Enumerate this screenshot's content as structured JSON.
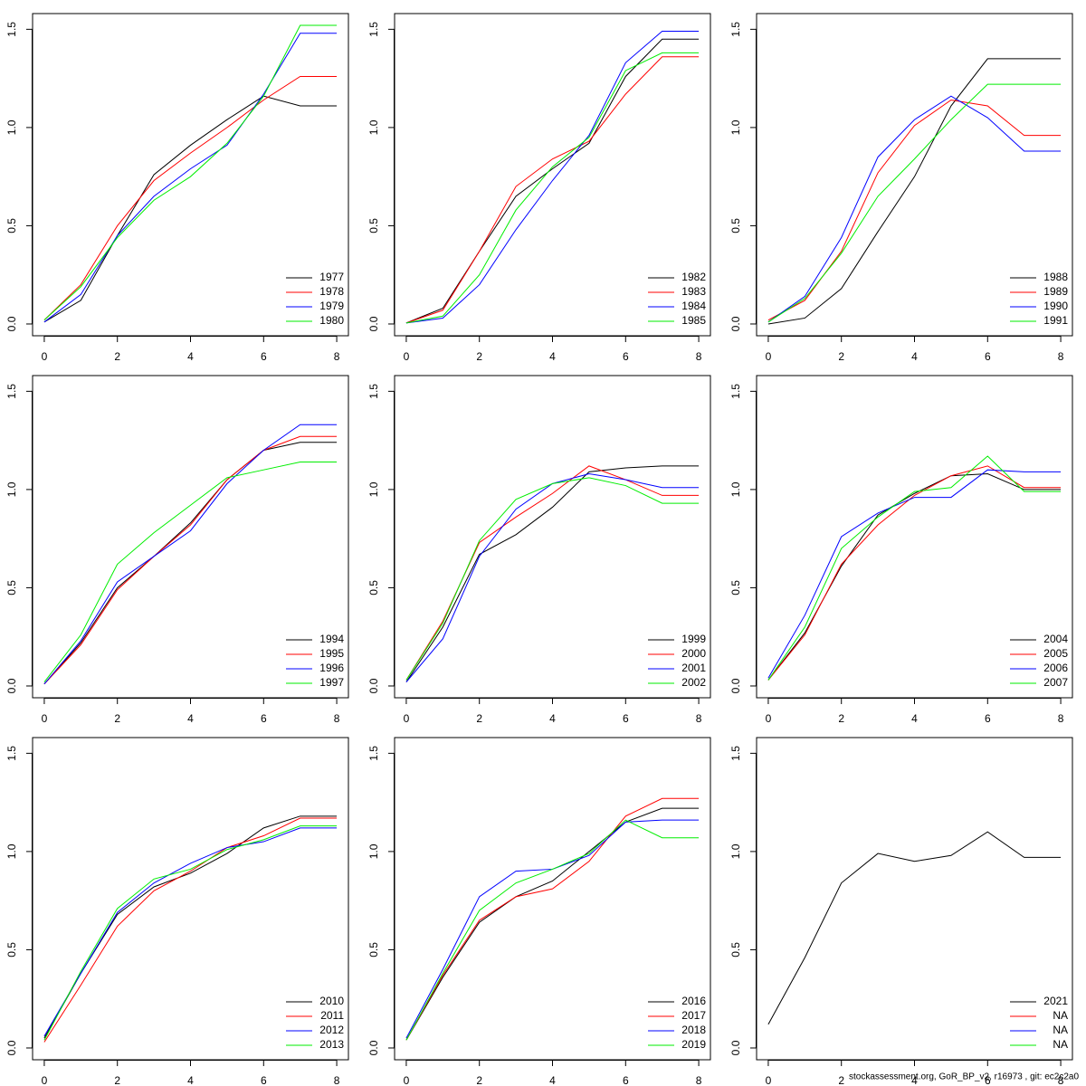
{
  "chart_data": [
    {
      "type": "line",
      "x": [
        0,
        1,
        2,
        3,
        4,
        5,
        6,
        7,
        8
      ],
      "xlim": [
        -0.32,
        8.32
      ],
      "ylim": [
        -0.06,
        1.58
      ],
      "xticks": [
        0,
        2,
        4,
        6,
        8
      ],
      "yticks": [
        {
          "value": 0,
          "label": "0.0"
        },
        {
          "value": 0.5,
          "label": "0.5"
        },
        {
          "value": 1,
          "label": "1.0"
        },
        {
          "value": 1.5,
          "label": "1.5"
        }
      ],
      "legend": "bottomright",
      "series": [
        {
          "name": "1977",
          "color": "#000000",
          "values": [
            0.01,
            0.12,
            0.45,
            0.76,
            0.91,
            1.04,
            1.16,
            1.11,
            1.11
          ]
        },
        {
          "name": "1978",
          "color": "#ff0000",
          "values": [
            0.02,
            0.2,
            0.5,
            0.73,
            0.87,
            1.0,
            1.14,
            1.26,
            1.26
          ]
        },
        {
          "name": "1979",
          "color": "#0000ff",
          "values": [
            0.01,
            0.15,
            0.45,
            0.65,
            0.79,
            0.91,
            1.17,
            1.48,
            1.48
          ]
        },
        {
          "name": "1980",
          "color": "#00ee00",
          "values": [
            0.02,
            0.19,
            0.44,
            0.63,
            0.75,
            0.92,
            1.16,
            1.52,
            1.52
          ]
        }
      ]
    },
    {
      "type": "line",
      "x": [
        0,
        1,
        2,
        3,
        4,
        5,
        6,
        7,
        8
      ],
      "xlim": [
        -0.32,
        8.32
      ],
      "ylim": [
        -0.06,
        1.58
      ],
      "xticks": [
        0,
        2,
        4,
        6,
        8
      ],
      "yticks": [
        {
          "value": 0,
          "label": "0.0"
        },
        {
          "value": 0.5,
          "label": "0.5"
        },
        {
          "value": 1,
          "label": "1.0"
        },
        {
          "value": 1.5,
          "label": "1.5"
        }
      ],
      "legend": "bottomright",
      "series": [
        {
          "name": "1982",
          "color": "#000000",
          "values": [
            0.005,
            0.08,
            0.37,
            0.65,
            0.79,
            0.92,
            1.26,
            1.45,
            1.45
          ]
        },
        {
          "name": "1983",
          "color": "#ff0000",
          "values": [
            0.005,
            0.07,
            0.37,
            0.7,
            0.84,
            0.93,
            1.17,
            1.36,
            1.36
          ]
        },
        {
          "name": "1984",
          "color": "#0000ff",
          "values": [
            0.005,
            0.03,
            0.2,
            0.48,
            0.73,
            0.96,
            1.33,
            1.49,
            1.49
          ]
        },
        {
          "name": "1985",
          "color": "#00ee00",
          "values": [
            0.005,
            0.04,
            0.25,
            0.58,
            0.8,
            0.95,
            1.29,
            1.38,
            1.38
          ]
        }
      ]
    },
    {
      "type": "line",
      "x": [
        0,
        1,
        2,
        3,
        4,
        5,
        6,
        7,
        8
      ],
      "xlim": [
        -0.32,
        8.32
      ],
      "ylim": [
        -0.06,
        1.58
      ],
      "xticks": [
        0,
        2,
        4,
        6,
        8
      ],
      "yticks": [
        {
          "value": 0,
          "label": "0.0"
        },
        {
          "value": 0.5,
          "label": "0.5"
        },
        {
          "value": 1,
          "label": "1.0"
        },
        {
          "value": 1.5,
          "label": "1.5"
        }
      ],
      "legend": "bottomright",
      "series": [
        {
          "name": "1988",
          "color": "#000000",
          "values": [
            0.0,
            0.03,
            0.18,
            0.47,
            0.75,
            1.11,
            1.35,
            1.35,
            1.35
          ]
        },
        {
          "name": "1989",
          "color": "#ff0000",
          "values": [
            0.02,
            0.12,
            0.37,
            0.77,
            1.01,
            1.14,
            1.11,
            0.96,
            0.96
          ]
        },
        {
          "name": "1990",
          "color": "#0000ff",
          "values": [
            0.01,
            0.14,
            0.44,
            0.85,
            1.04,
            1.16,
            1.05,
            0.88,
            0.88
          ]
        },
        {
          "name": "1991",
          "color": "#00ee00",
          "values": [
            0.01,
            0.13,
            0.36,
            0.65,
            0.84,
            1.04,
            1.22,
            1.22,
            1.22
          ]
        }
      ]
    },
    {
      "type": "line",
      "x": [
        0,
        1,
        2,
        3,
        4,
        5,
        6,
        7,
        8
      ],
      "xlim": [
        -0.32,
        8.32
      ],
      "ylim": [
        -0.06,
        1.58
      ],
      "xticks": [
        0,
        2,
        4,
        6,
        8
      ],
      "yticks": [
        {
          "value": 0,
          "label": "0.0"
        },
        {
          "value": 0.5,
          "label": "0.5"
        },
        {
          "value": 1,
          "label": "1.0"
        },
        {
          "value": 1.5,
          "label": "1.5"
        }
      ],
      "legend": "bottomright",
      "series": [
        {
          "name": "1994",
          "color": "#000000",
          "values": [
            0.01,
            0.22,
            0.5,
            0.66,
            0.83,
            1.05,
            1.2,
            1.24,
            1.24
          ]
        },
        {
          "name": "1995",
          "color": "#ff0000",
          "values": [
            0.01,
            0.21,
            0.49,
            0.66,
            0.82,
            1.05,
            1.2,
            1.27,
            1.27
          ]
        },
        {
          "name": "1996",
          "color": "#0000ff",
          "values": [
            0.01,
            0.23,
            0.53,
            0.66,
            0.79,
            1.03,
            1.2,
            1.33,
            1.33
          ]
        },
        {
          "name": "1997",
          "color": "#00ee00",
          "values": [
            0.02,
            0.26,
            0.62,
            0.78,
            0.92,
            1.06,
            1.1,
            1.14,
            1.14
          ]
        }
      ]
    },
    {
      "type": "line",
      "x": [
        0,
        1,
        2,
        3,
        4,
        5,
        6,
        7,
        8
      ],
      "xlim": [
        -0.32,
        8.32
      ],
      "ylim": [
        -0.06,
        1.58
      ],
      "xticks": [
        0,
        2,
        4,
        6,
        8
      ],
      "yticks": [
        {
          "value": 0,
          "label": "0.0"
        },
        {
          "value": 0.5,
          "label": "0.5"
        },
        {
          "value": 1,
          "label": "1.0"
        },
        {
          "value": 1.5,
          "label": "1.5"
        }
      ],
      "legend": "bottomright",
      "series": [
        {
          "name": "1999",
          "color": "#000000",
          "values": [
            0.02,
            0.3,
            0.67,
            0.77,
            0.91,
            1.09,
            1.11,
            1.12,
            1.12
          ]
        },
        {
          "name": "2000",
          "color": "#ff0000",
          "values": [
            0.03,
            0.33,
            0.73,
            0.86,
            0.98,
            1.12,
            1.05,
            0.97,
            0.97
          ]
        },
        {
          "name": "2001",
          "color": "#0000ff",
          "values": [
            0.02,
            0.24,
            0.66,
            0.9,
            1.03,
            1.08,
            1.05,
            1.01,
            1.01
          ]
        },
        {
          "name": "2002",
          "color": "#00ee00",
          "values": [
            0.03,
            0.32,
            0.74,
            0.95,
            1.03,
            1.06,
            1.02,
            0.93,
            0.93
          ]
        }
      ]
    },
    {
      "type": "line",
      "x": [
        0,
        1,
        2,
        3,
        4,
        5,
        6,
        7,
        8
      ],
      "xlim": [
        -0.32,
        8.32
      ],
      "ylim": [
        -0.06,
        1.58
      ],
      "xticks": [
        0,
        2,
        4,
        6,
        8
      ],
      "yticks": [
        {
          "value": 0,
          "label": "0.0"
        },
        {
          "value": 0.5,
          "label": "0.5"
        },
        {
          "value": 1,
          "label": "1.0"
        },
        {
          "value": 1.5,
          "label": "1.5"
        }
      ],
      "legend": "bottomright",
      "series": [
        {
          "name": "2004",
          "color": "#000000",
          "values": [
            0.03,
            0.27,
            0.61,
            0.87,
            0.98,
            1.07,
            1.08,
            1.0,
            1.0
          ]
        },
        {
          "name": "2005",
          "color": "#ff0000",
          "values": [
            0.03,
            0.26,
            0.62,
            0.82,
            0.97,
            1.07,
            1.12,
            1.01,
            1.01
          ]
        },
        {
          "name": "2006",
          "color": "#0000ff",
          "values": [
            0.04,
            0.36,
            0.76,
            0.88,
            0.96,
            0.96,
            1.1,
            1.09,
            1.09
          ]
        },
        {
          "name": "2007",
          "color": "#00ee00",
          "values": [
            0.03,
            0.3,
            0.7,
            0.86,
            0.99,
            1.01,
            1.17,
            0.99,
            0.99
          ]
        }
      ]
    },
    {
      "type": "line",
      "x": [
        0,
        1,
        2,
        3,
        4,
        5,
        6,
        7,
        8
      ],
      "xlim": [
        -0.32,
        8.32
      ],
      "ylim": [
        -0.06,
        1.58
      ],
      "xticks": [
        0,
        2,
        4,
        6,
        8
      ],
      "yticks": [
        {
          "value": 0,
          "label": "0.0"
        },
        {
          "value": 0.5,
          "label": "0.5"
        },
        {
          "value": 1,
          "label": "1.0"
        },
        {
          "value": 1.5,
          "label": "1.5"
        }
      ],
      "legend": "bottomright",
      "series": [
        {
          "name": "2010",
          "color": "#000000",
          "values": [
            0.05,
            0.38,
            0.68,
            0.82,
            0.89,
            0.99,
            1.12,
            1.18,
            1.18
          ]
        },
        {
          "name": "2011",
          "color": "#ff0000",
          "values": [
            0.03,
            0.32,
            0.62,
            0.8,
            0.9,
            1.02,
            1.08,
            1.17,
            1.17
          ]
        },
        {
          "name": "2012",
          "color": "#0000ff",
          "values": [
            0.06,
            0.38,
            0.69,
            0.84,
            0.94,
            1.02,
            1.05,
            1.12,
            1.12
          ]
        },
        {
          "name": "2013",
          "color": "#00ee00",
          "values": [
            0.04,
            0.39,
            0.71,
            0.86,
            0.91,
            1.01,
            1.06,
            1.13,
            1.13
          ]
        }
      ]
    },
    {
      "type": "line",
      "x": [
        0,
        1,
        2,
        3,
        4,
        5,
        6,
        7,
        8
      ],
      "xlim": [
        -0.32,
        8.32
      ],
      "ylim": [
        -0.06,
        1.58
      ],
      "xticks": [
        0,
        2,
        4,
        6,
        8
      ],
      "yticks": [
        {
          "value": 0,
          "label": "0.0"
        },
        {
          "value": 0.5,
          "label": "0.5"
        },
        {
          "value": 1,
          "label": "1.0"
        },
        {
          "value": 1.5,
          "label": "1.5"
        }
      ],
      "legend": "bottomright",
      "series": [
        {
          "name": "2016",
          "color": "#000000",
          "values": [
            0.04,
            0.36,
            0.64,
            0.77,
            0.85,
            1.0,
            1.15,
            1.22,
            1.22
          ]
        },
        {
          "name": "2017",
          "color": "#ff0000",
          "values": [
            0.04,
            0.37,
            0.65,
            0.77,
            0.81,
            0.95,
            1.18,
            1.27,
            1.27
          ]
        },
        {
          "name": "2018",
          "color": "#0000ff",
          "values": [
            0.05,
            0.4,
            0.77,
            0.9,
            0.91,
            0.98,
            1.15,
            1.16,
            1.16
          ]
        },
        {
          "name": "2019",
          "color": "#00ee00",
          "values": [
            0.04,
            0.38,
            0.7,
            0.84,
            0.91,
            0.99,
            1.16,
            1.07,
            1.07
          ]
        }
      ]
    },
    {
      "type": "line",
      "x": [
        0,
        1,
        2,
        3,
        4,
        5,
        6,
        7,
        8
      ],
      "xlim": [
        -0.32,
        8.32
      ],
      "ylim": [
        -0.06,
        1.58
      ],
      "xticks": [
        0,
        2,
        4,
        6,
        8
      ],
      "yticks": [
        {
          "value": 0,
          "label": "0.0"
        },
        {
          "value": 0.5,
          "label": "0.5"
        },
        {
          "value": 1,
          "label": "1.0"
        },
        {
          "value": 1.5,
          "label": "1.5"
        }
      ],
      "legend": "bottomright",
      "series": [
        {
          "name": "2021",
          "color": "#000000",
          "values": [
            0.12,
            0.46,
            0.84,
            0.99,
            0.95,
            0.98,
            1.1,
            0.97,
            0.97
          ]
        },
        {
          "name": "NA",
          "color": "#ff0000",
          "values": [
            null,
            null,
            null,
            null,
            null,
            null,
            null,
            null,
            null
          ]
        },
        {
          "name": "NA",
          "color": "#0000ff",
          "values": [
            null,
            null,
            null,
            null,
            null,
            null,
            null,
            null,
            null
          ]
        },
        {
          "name": "NA",
          "color": "#00ee00",
          "values": [
            null,
            null,
            null,
            null,
            null,
            null,
            null,
            null,
            null
          ]
        }
      ]
    }
  ],
  "footer": "stockassessment.org, GoR_BP_v2, r16973 , git: ec2c2a0"
}
